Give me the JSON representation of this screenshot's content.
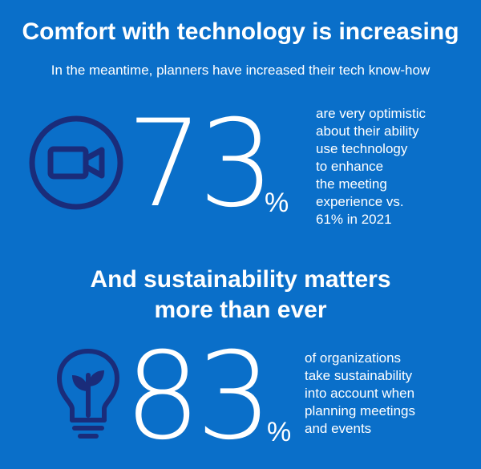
{
  "header": {
    "title": "Comfort with technology is increasing",
    "subtitle": "In the meantime, planners have increased their tech know-how"
  },
  "stat_tech": {
    "icon": "video-camera-icon",
    "number": "73",
    "percent": "%",
    "description_lines": [
      "are very optimistic",
      "about their ability",
      "use technology",
      "to enhance",
      "the meeting",
      "experience vs.",
      "61% in 2021"
    ]
  },
  "section2": {
    "heading_lines": [
      "And sustainability matters",
      "more than ever"
    ]
  },
  "stat_sustainability": {
    "icon": "lightbulb-plant-icon",
    "number": "83",
    "percent": "%",
    "description_lines": [
      "of organizations",
      "take sustainability",
      "into account when",
      "planning meetings",
      "and events"
    ]
  },
  "colors": {
    "background": "#0a6fc9",
    "icon": "#1a2c7a",
    "text": "#ffffff"
  }
}
